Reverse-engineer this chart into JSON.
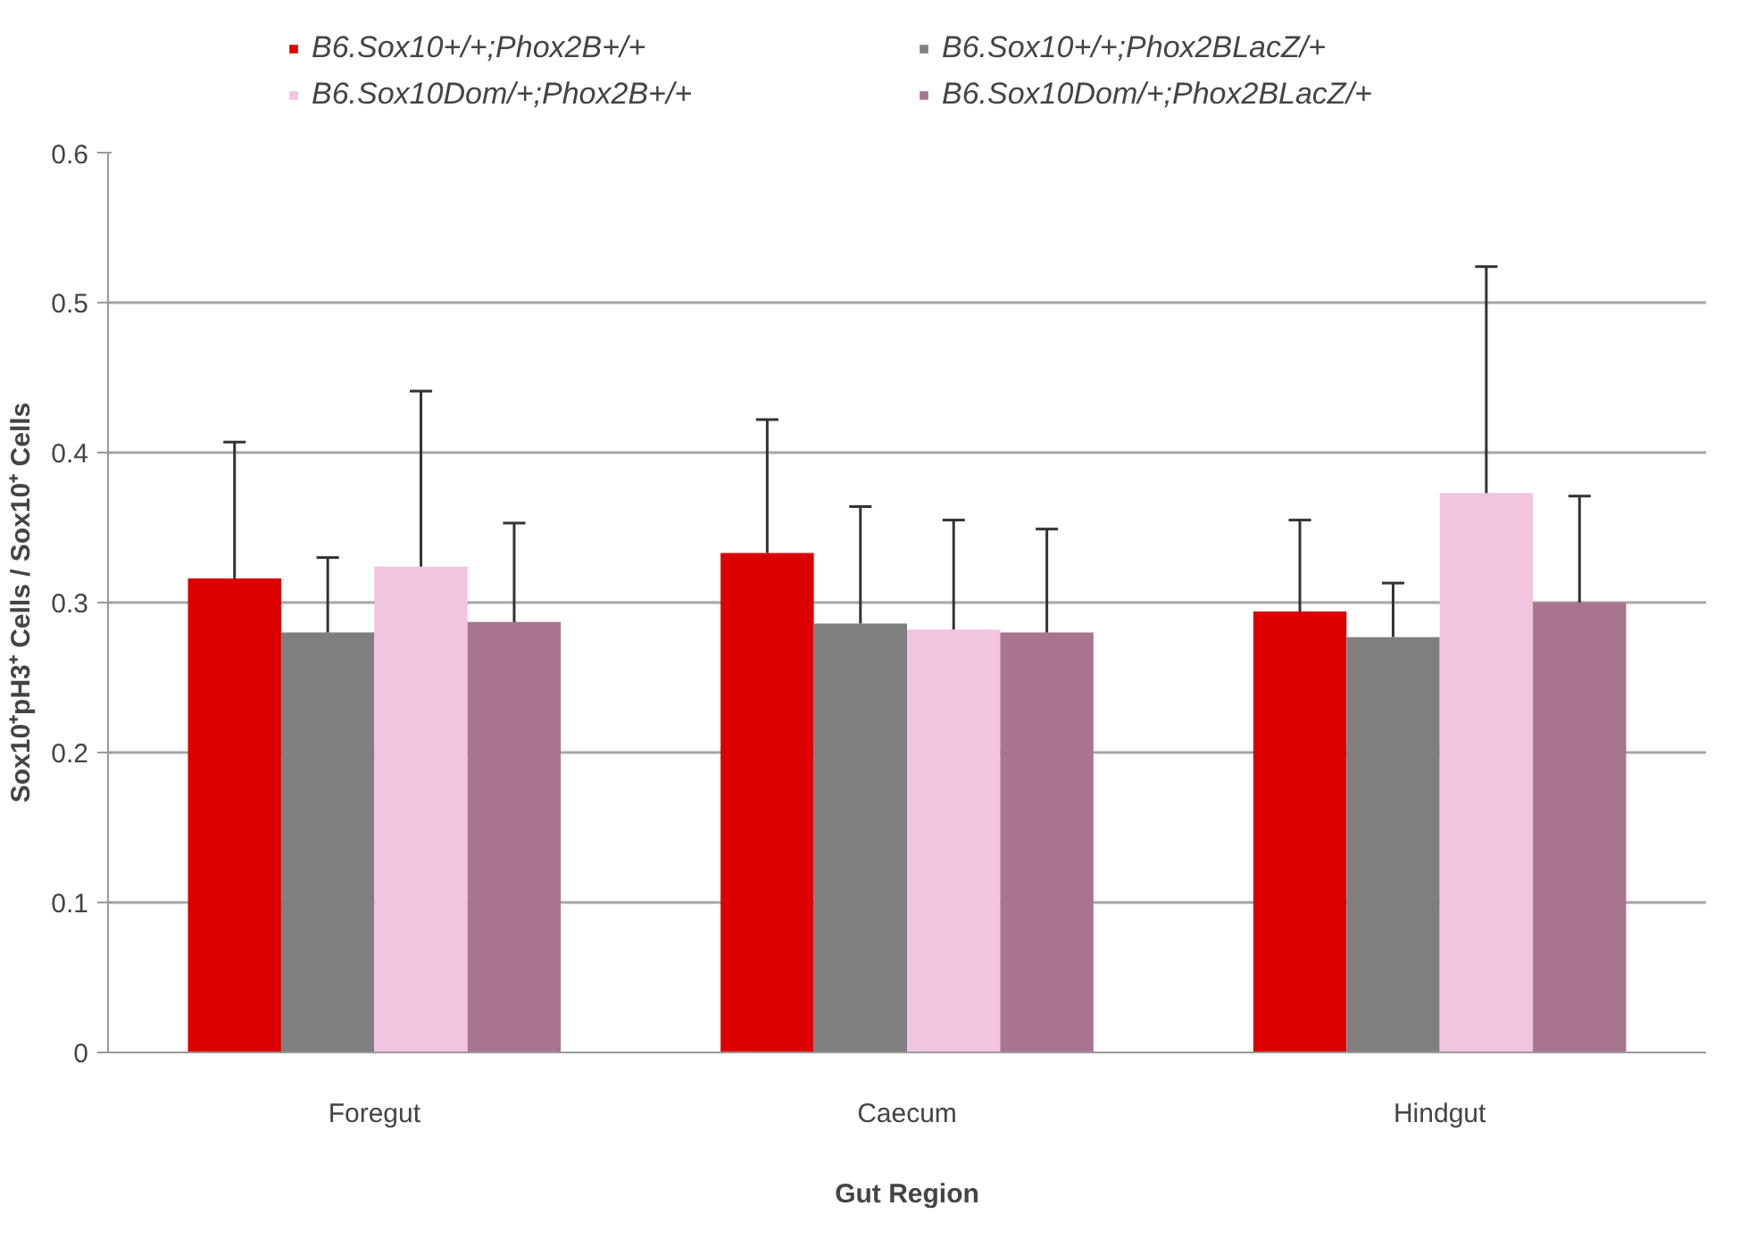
{
  "chart_data": {
    "type": "bar",
    "xlabel": "Gut Region",
    "ylabel": "Sox10⁺pH3⁺ Cells / Sox10⁺ Cells",
    "categories": [
      "Foregut",
      "Caecum",
      "Hindgut"
    ],
    "series": [
      {
        "name": "B6.Sox10+/+;Phox2B+/+",
        "color": "#dd0000",
        "values": [
          0.316,
          0.333,
          0.294
        ],
        "errors": [
          [
            0.316,
            0.407
          ],
          [
            0.333,
            0.422
          ],
          [
            0.294,
            0.355
          ]
        ]
      },
      {
        "name": "B6.Sox10+/+;Phox2BLacZ/+",
        "color": "#7f7f7f",
        "values": [
          0.28,
          0.286,
          0.277
        ],
        "errors": [
          [
            0.28,
            0.33
          ],
          [
            0.286,
            0.364
          ],
          [
            0.277,
            0.313
          ]
        ]
      },
      {
        "name": "B6.Sox10Dom/+;Phox2B+/+",
        "color": "#f2c4df",
        "values": [
          0.324,
          0.282,
          0.373
        ],
        "errors": [
          [
            0.324,
            0.441
          ],
          [
            0.282,
            0.355
          ],
          [
            0.373,
            0.524
          ]
        ]
      },
      {
        "name": "B6.Sox10Dom/+;Phox2BLacZ/+",
        "color": "#a8748e",
        "values": [
          0.287,
          0.28,
          0.3
        ],
        "errors": [
          [
            0.287,
            0.353
          ],
          [
            0.28,
            0.349
          ],
          [
            0.3,
            0.371
          ]
        ]
      }
    ],
    "ylim": [
      0,
      0.6
    ],
    "yticks": [
      0,
      0.1,
      0.2,
      0.3,
      0.4,
      0.5,
      0.6
    ],
    "grid": "y",
    "legend": "top"
  }
}
